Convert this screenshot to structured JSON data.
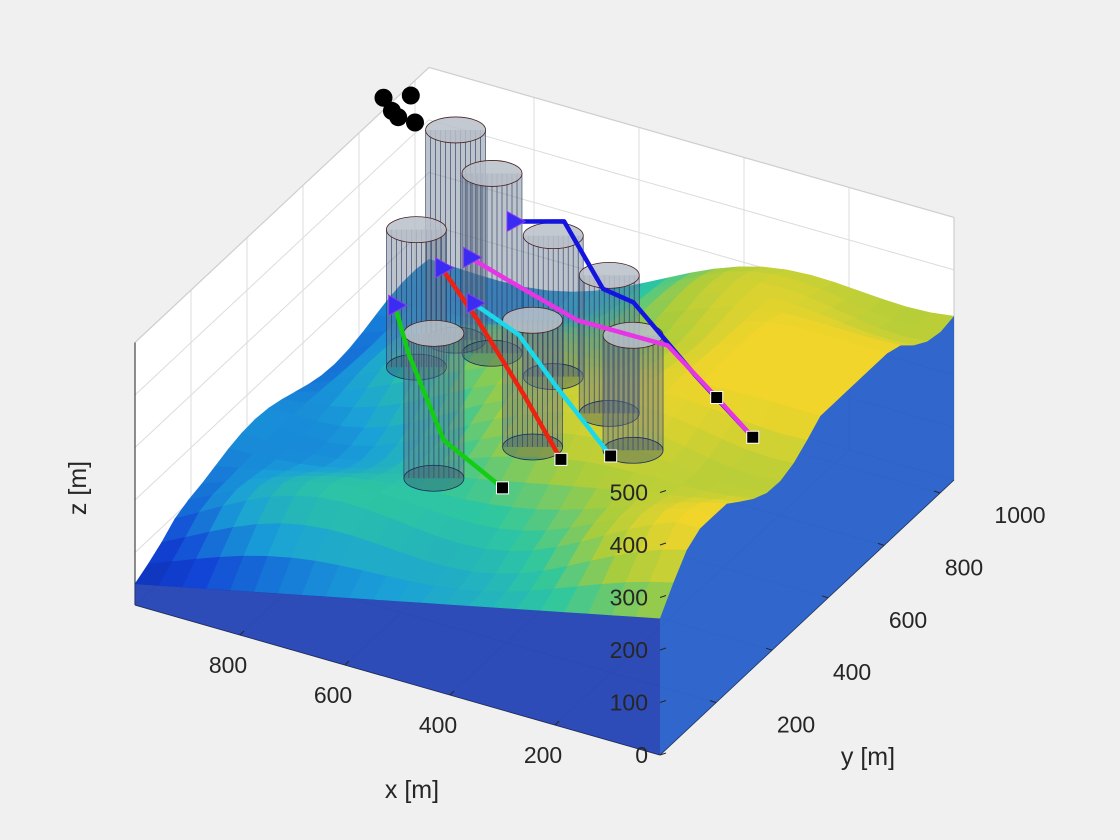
{
  "chart_data": {
    "type": "surface3d",
    "xlabel": "x [m]",
    "ylabel": "y [m]",
    "zlabel": "z [m]",
    "xlim": [
      0,
      1000
    ],
    "ylim": [
      0,
      1050
    ],
    "zlim": [
      0,
      500
    ],
    "x_ticks": [
      {
        "value": 200,
        "label": "200"
      },
      {
        "value": 400,
        "label": "400"
      },
      {
        "value": 600,
        "label": "600"
      },
      {
        "value": 800,
        "label": "800"
      }
    ],
    "y_ticks": [
      {
        "value": 200,
        "label": "200"
      },
      {
        "value": 400,
        "label": "400"
      },
      {
        "value": 600,
        "label": "600"
      },
      {
        "value": 800,
        "label": "800"
      },
      {
        "value": 1000,
        "label": "1000"
      }
    ],
    "z_ticks": [
      {
        "value": 0,
        "label": "0"
      },
      {
        "value": 100,
        "label": "100"
      },
      {
        "value": 200,
        "label": "200"
      },
      {
        "value": 300,
        "label": "300"
      },
      {
        "value": 400,
        "label": "400"
      },
      {
        "value": 500,
        "label": "500"
      }
    ],
    "grid": true,
    "colormap": "parula",
    "obstacles": [
      {
        "x": 350,
        "y": 560,
        "height": 420
      },
      {
        "x": 470,
        "y": 700,
        "height": 430
      },
      {
        "x": 520,
        "y": 520,
        "height": 420
      },
      {
        "x": 630,
        "y": 800,
        "height": 410
      },
      {
        "x": 660,
        "y": 430,
        "height": 400
      },
      {
        "x": 800,
        "y": 900,
        "height": 430
      },
      {
        "x": 880,
        "y": 920,
        "height": 480
      },
      {
        "x": 880,
        "y": 780,
        "height": 360
      }
    ],
    "paths": [
      {
        "color": "#1414e0",
        "points": [
          [
            90,
            500,
            330
          ],
          [
            220,
            540,
            390
          ],
          [
            360,
            580,
            470
          ],
          [
            450,
            640,
            440
          ],
          [
            620,
            820,
            430
          ],
          [
            760,
            900,
            350
          ]
        ]
      },
      {
        "color": "#e535e5",
        "points": [
          [
            90,
            500,
            330
          ],
          [
            180,
            540,
            360
          ],
          [
            300,
            590,
            400
          ],
          [
            520,
            680,
            340
          ],
          [
            700,
            770,
            320
          ],
          [
            800,
            820,
            310
          ]
        ]
      },
      {
        "color": "#1ad9ea",
        "points": [
          [
            350,
            480,
            230
          ],
          [
            480,
            530,
            300
          ],
          [
            600,
            620,
            320
          ],
          [
            740,
            720,
            290
          ]
        ]
      },
      {
        "color": "#ee2211",
        "points": [
          [
            450,
            490,
            190
          ],
          [
            560,
            560,
            250
          ],
          [
            700,
            660,
            300
          ],
          [
            800,
            720,
            340
          ]
        ]
      },
      {
        "color": "#15cc15",
        "points": [
          [
            540,
            450,
            130
          ],
          [
            700,
            540,
            130
          ],
          [
            820,
            640,
            210
          ],
          [
            900,
            740,
            230
          ]
        ]
      }
    ],
    "start_markers": [
      [
        90,
        500,
        330
      ],
      [
        180,
        540,
        360
      ],
      [
        350,
        480,
        230
      ],
      [
        450,
        490,
        190
      ],
      [
        540,
        450,
        130
      ]
    ],
    "goal_markers": [
      [
        760,
        900,
        350
      ],
      [
        800,
        820,
        310
      ],
      [
        740,
        720,
        290
      ],
      [
        800,
        720,
        340
      ],
      [
        900,
        740,
        230
      ]
    ],
    "points": [
      [
        1000,
        1000,
        420
      ],
      [
        1000,
        940,
        460
      ],
      [
        1060,
        1000,
        450
      ],
      [
        1040,
        1060,
        430
      ],
      [
        1060,
        1030,
        410
      ]
    ]
  }
}
